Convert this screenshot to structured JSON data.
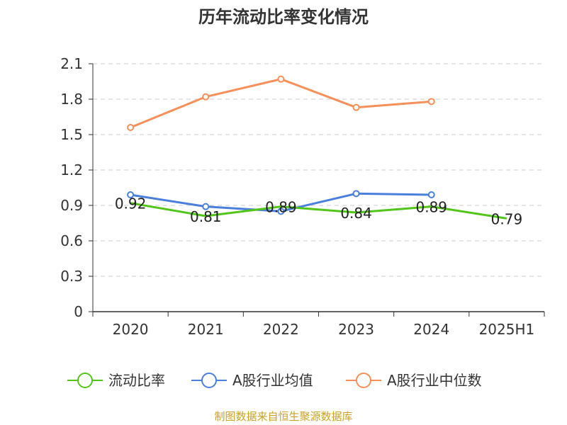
{
  "chart_data": {
    "type": "line",
    "title": "历年流动比率变化情况",
    "categories": [
      "2020",
      "2021",
      "2022",
      "2023",
      "2024",
      "2025H1"
    ],
    "ylim": [
      0,
      2.1
    ],
    "yticks": [
      0,
      0.3,
      0.6,
      0.9,
      1.2,
      1.5,
      1.8,
      2.1
    ],
    "ytick_labels": [
      "0",
      "0.3",
      "0.6",
      "0.9",
      "1.2",
      "1.5",
      "1.8",
      "2.1"
    ],
    "grid": true,
    "legend_position": "bottom",
    "series": [
      {
        "name": "流动比率",
        "color": "#52c41a",
        "values": [
          0.92,
          0.81,
          0.89,
          0.84,
          0.89,
          0.79
        ],
        "labels": [
          "0.92",
          "0.81",
          "0.89",
          "0.84",
          "0.89",
          "0.79"
        ]
      },
      {
        "name": "A股行业均值",
        "color": "#4a7fdc",
        "values": [
          0.99,
          0.89,
          0.85,
          1.0,
          0.99,
          null
        ]
      },
      {
        "name": "A股行业中位数",
        "color": "#f5905a",
        "values": [
          1.56,
          1.82,
          1.97,
          1.73,
          1.78,
          null
        ]
      }
    ],
    "source": "制图数据来自恒生聚源数据库"
  }
}
